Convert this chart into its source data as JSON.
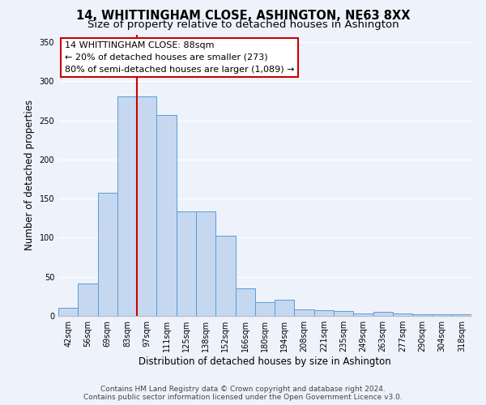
{
  "title": "14, WHITTINGHAM CLOSE, ASHINGTON, NE63 8XX",
  "subtitle": "Size of property relative to detached houses in Ashington",
  "xlabel": "Distribution of detached houses by size in Ashington",
  "ylabel": "Number of detached properties",
  "bar_labels": [
    "42sqm",
    "56sqm",
    "69sqm",
    "83sqm",
    "97sqm",
    "111sqm",
    "125sqm",
    "138sqm",
    "152sqm",
    "166sqm",
    "180sqm",
    "194sqm",
    "208sqm",
    "221sqm",
    "235sqm",
    "249sqm",
    "263sqm",
    "277sqm",
    "290sqm",
    "304sqm",
    "318sqm"
  ],
  "bar_values": [
    10,
    41,
    157,
    281,
    281,
    257,
    134,
    134,
    103,
    35,
    18,
    21,
    8,
    7,
    6,
    3,
    5,
    3,
    2,
    2,
    2
  ],
  "bar_color": "#c5d8f0",
  "bar_edge_color": "#5b9bd5",
  "vline_x_index": 3,
  "vline_color": "#cc0000",
  "annotation_title": "14 WHITTINGHAM CLOSE: 88sqm",
  "annotation_line1": "← 20% of detached houses are smaller (273)",
  "annotation_line2": "80% of semi-detached houses are larger (1,089) →",
  "annotation_box_color": "#ffffff",
  "annotation_box_edge": "#cc0000",
  "ylim": [
    0,
    360
  ],
  "yticks": [
    0,
    50,
    100,
    150,
    200,
    250,
    300,
    350
  ],
  "footer1": "Contains HM Land Registry data © Crown copyright and database right 2024.",
  "footer2": "Contains public sector information licensed under the Open Government Licence v3.0.",
  "bg_color": "#eef2fb",
  "plot_bg_color": "#eef2fb",
  "title_fontsize": 10.5,
  "subtitle_fontsize": 9.5,
  "axis_label_fontsize": 8.5,
  "tick_fontsize": 7,
  "annotation_fontsize": 8,
  "footer_fontsize": 6.5
}
